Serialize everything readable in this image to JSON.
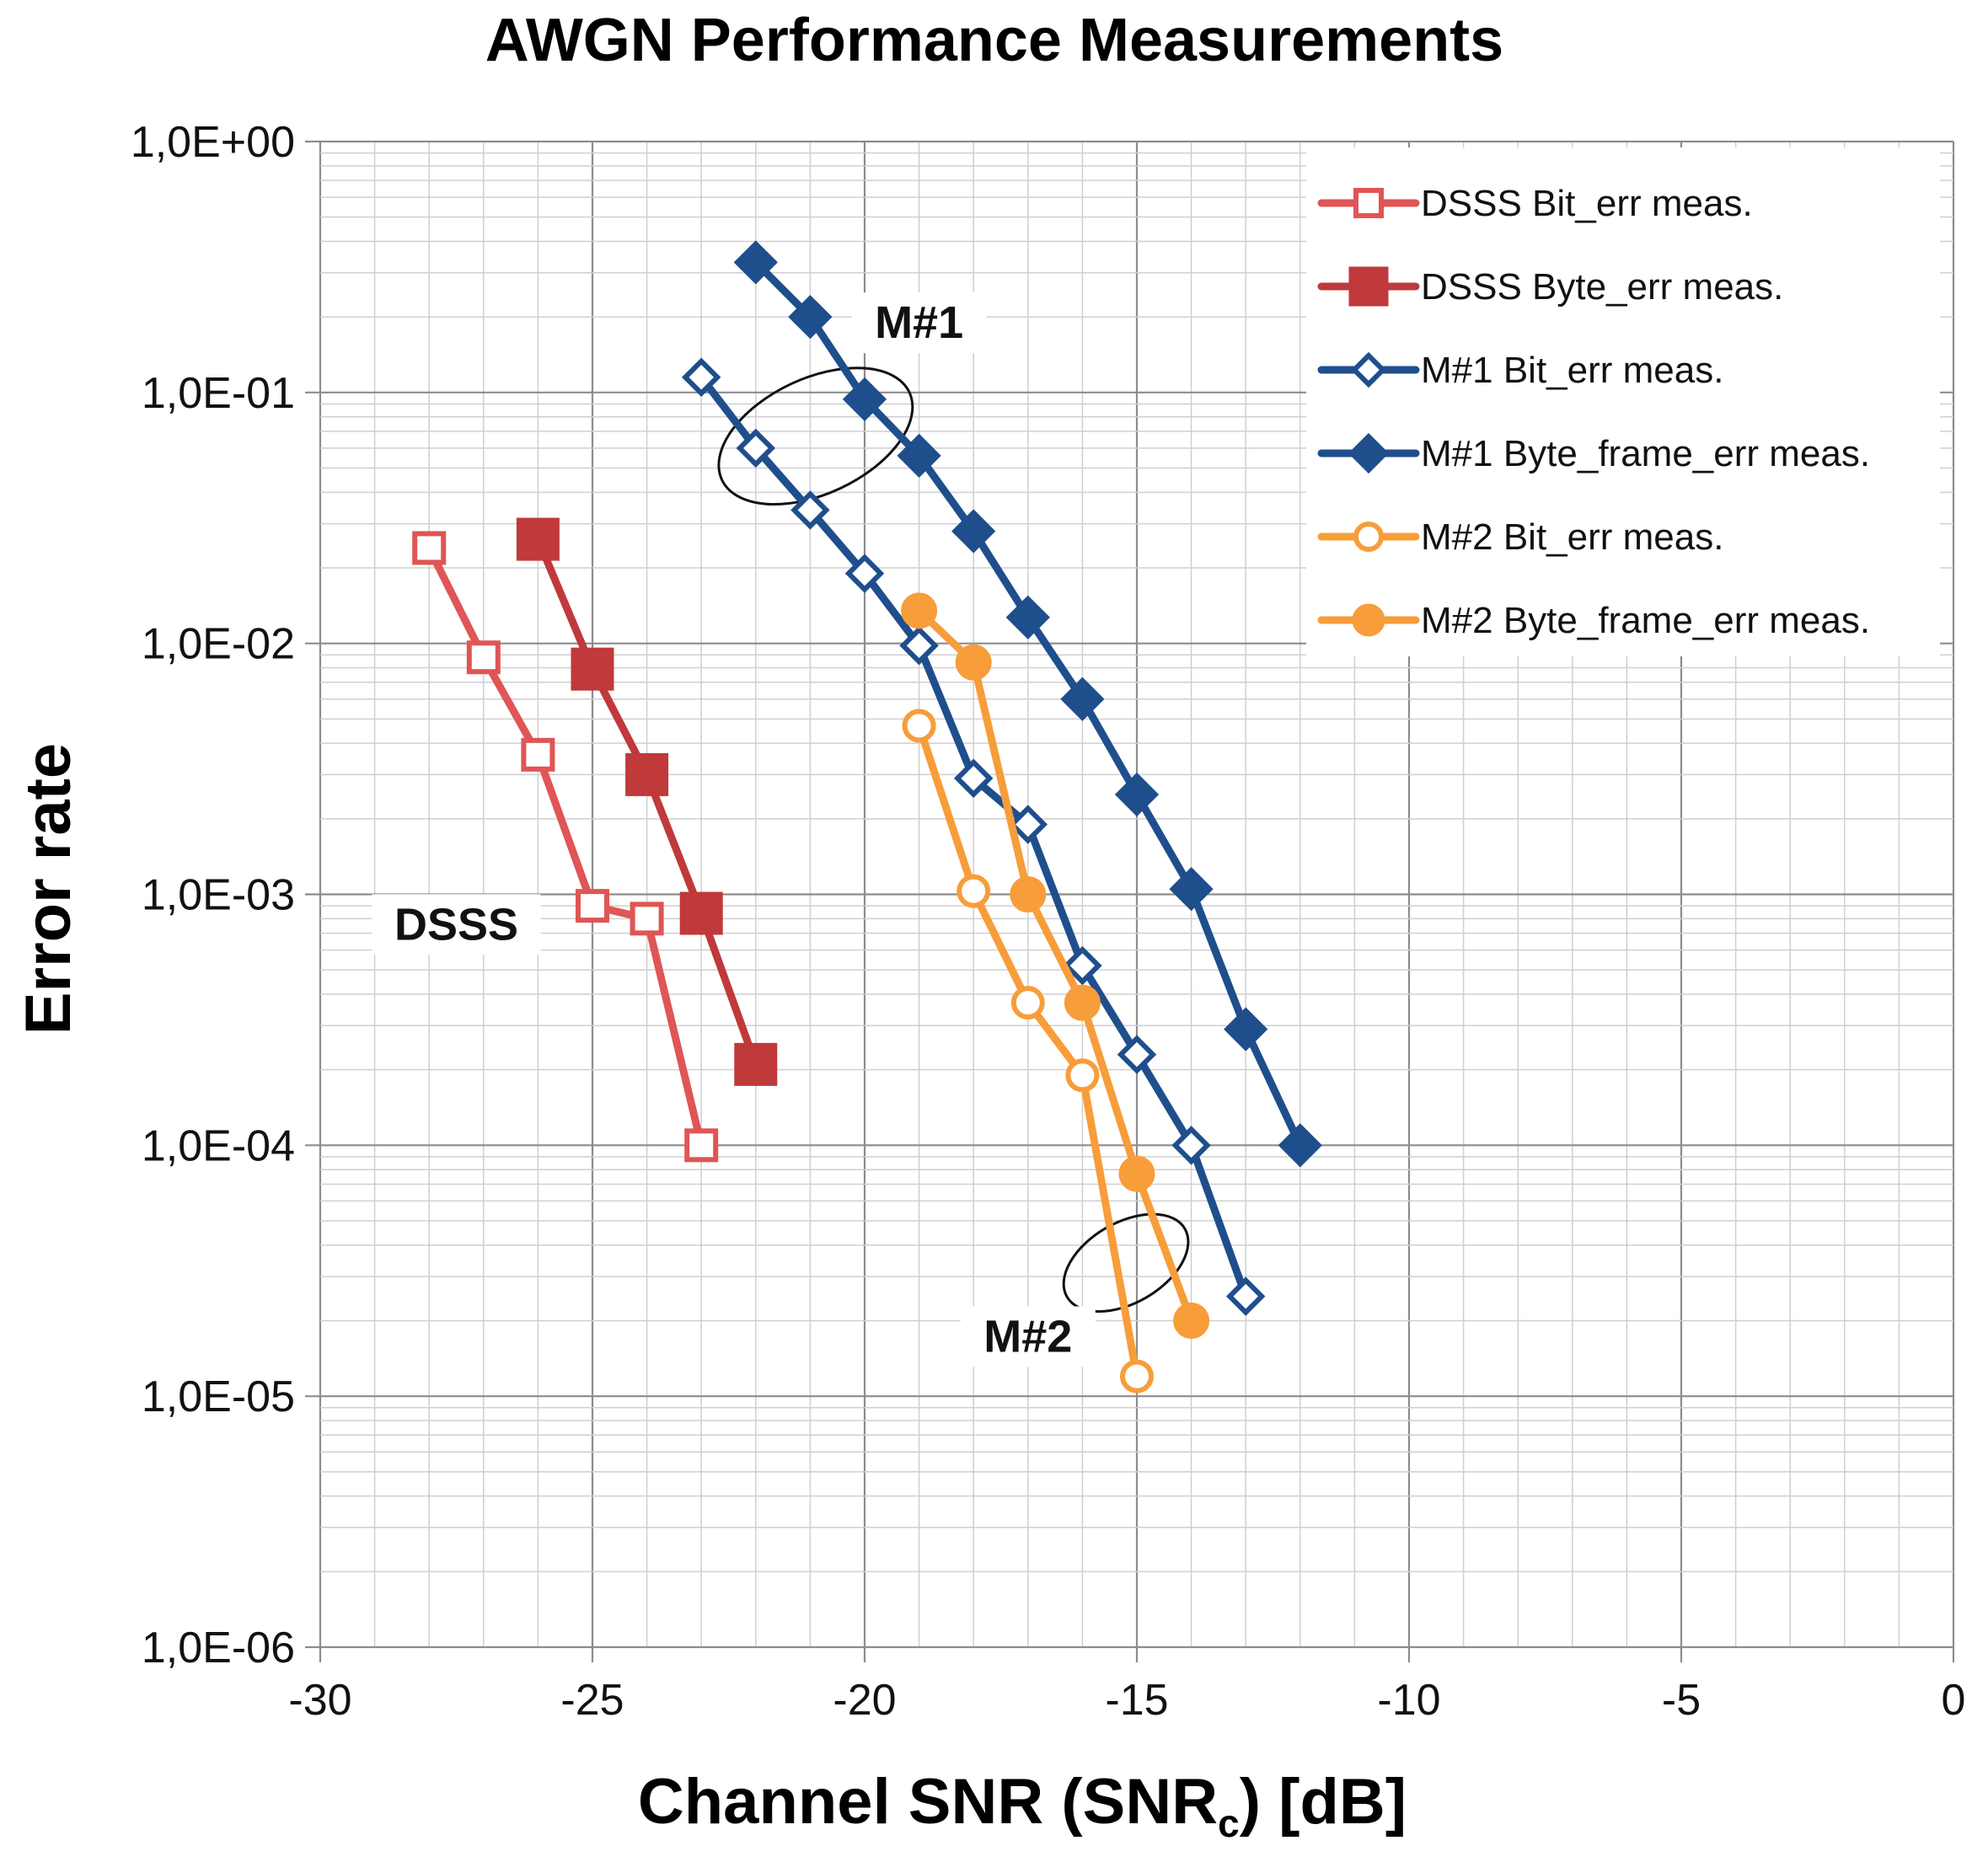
{
  "chart_data": {
    "type": "line",
    "title": "AWGN Performance Measurements",
    "xlabel_main": "Channel SNR (SNR",
    "xlabel_sub": "c",
    "xlabel_end": ") [dB]",
    "ylabel": "Error rate",
    "xlim": [
      -30,
      0
    ],
    "ylim": [
      1e-06,
      1
    ],
    "yscale": "log",
    "grid": true,
    "legend_position": "top-right",
    "x_ticks": [
      -30,
      -25,
      -20,
      -15,
      -10,
      -5,
      0
    ],
    "x_tick_labels": [
      "-30",
      "-25",
      "-20",
      "-15",
      "-10",
      "-5",
      "0"
    ],
    "y_ticks": [
      1,
      0.1,
      0.01,
      0.001,
      0.0001,
      1e-05,
      1e-06
    ],
    "y_tick_labels": [
      "1,0E+00",
      "1,0E-01",
      "1,0E-02",
      "1,0E-03",
      "1,0E-04",
      "1,0E-05",
      "1,0E-06"
    ],
    "series": [
      {
        "name": "DSSS Bit_err meas.",
        "color": "#e05555",
        "marker": "square",
        "filled": false,
        "points": [
          [
            -28,
            0.024
          ],
          [
            -27,
            0.0088
          ],
          [
            -26,
            0.0036
          ],
          [
            -25,
            0.0009
          ],
          [
            -24,
            0.0008
          ],
          [
            -23,
            0.0001
          ]
        ]
      },
      {
        "name": "DSSS Byte_err meas.",
        "color": "#c0393b",
        "marker": "square",
        "filled": true,
        "points": [
          [
            -26,
            0.026
          ],
          [
            -25,
            0.0079
          ],
          [
            -24,
            0.003
          ],
          [
            -23,
            0.00084
          ],
          [
            -22,
            0.00021
          ]
        ]
      },
      {
        "name": "M#1 Bit_err meas.",
        "color": "#1f4e8c",
        "marker": "diamond",
        "filled": false,
        "points": [
          [
            -23,
            0.115
          ],
          [
            -22,
            0.06
          ],
          [
            -21,
            0.034
          ],
          [
            -20,
            0.019
          ],
          [
            -19,
            0.0098
          ],
          [
            -18,
            0.0029
          ],
          [
            -17,
            0.0019
          ],
          [
            -16,
            0.00052
          ],
          [
            -15,
            0.00023
          ],
          [
            -14,
            0.0001
          ],
          [
            -13,
            2.5e-05
          ]
        ]
      },
      {
        "name": "M#1 Byte_frame_err meas.",
        "color": "#1f4e8c",
        "marker": "diamond",
        "filled": true,
        "points": [
          [
            -22,
            0.33
          ],
          [
            -21,
            0.2
          ],
          [
            -20,
            0.094
          ],
          [
            -19,
            0.056
          ],
          [
            -18,
            0.028
          ],
          [
            -17,
            0.0127
          ],
          [
            -16,
            0.006
          ],
          [
            -15,
            0.0025
          ],
          [
            -14,
            0.00105
          ],
          [
            -13,
            0.00029
          ],
          [
            -12,
            0.0001
          ]
        ]
      },
      {
        "name": "M#2 Bit_err meas.",
        "color": "#f79d3a",
        "marker": "circle",
        "filled": false,
        "points": [
          [
            -19,
            0.0047
          ],
          [
            -18,
            0.00103
          ],
          [
            -17,
            0.00037
          ],
          [
            -16,
            0.00019
          ],
          [
            -15,
            1.2e-05
          ]
        ]
      },
      {
        "name": "M#2 Byte_frame_err meas.",
        "color": "#f79d3a",
        "marker": "circle",
        "filled": true,
        "points": [
          [
            -19,
            0.0135
          ],
          [
            -18,
            0.0084
          ],
          [
            -17,
            0.001
          ],
          [
            -16,
            0.00037
          ],
          [
            -15,
            7.7e-05
          ],
          [
            -14,
            2e-05
          ]
        ]
      }
    ],
    "annotations": [
      {
        "text": "M#1",
        "x": -19.0,
        "y": 0.17
      },
      {
        "text": "DSSS",
        "x": -27.5,
        "y": 0.00068
      },
      {
        "text": "M#2",
        "x": -17.0,
        "y": 1.55e-05
      }
    ],
    "ellipses": [
      {
        "cx": -20.9,
        "cy": 0.067,
        "rx": 1.9,
        "ry_decades": 0.23,
        "angle": -25
      },
      {
        "cx": -15.2,
        "cy": 3.4e-05,
        "rx": 1.25,
        "ry_decades": 0.16,
        "angle": -30
      }
    ]
  }
}
